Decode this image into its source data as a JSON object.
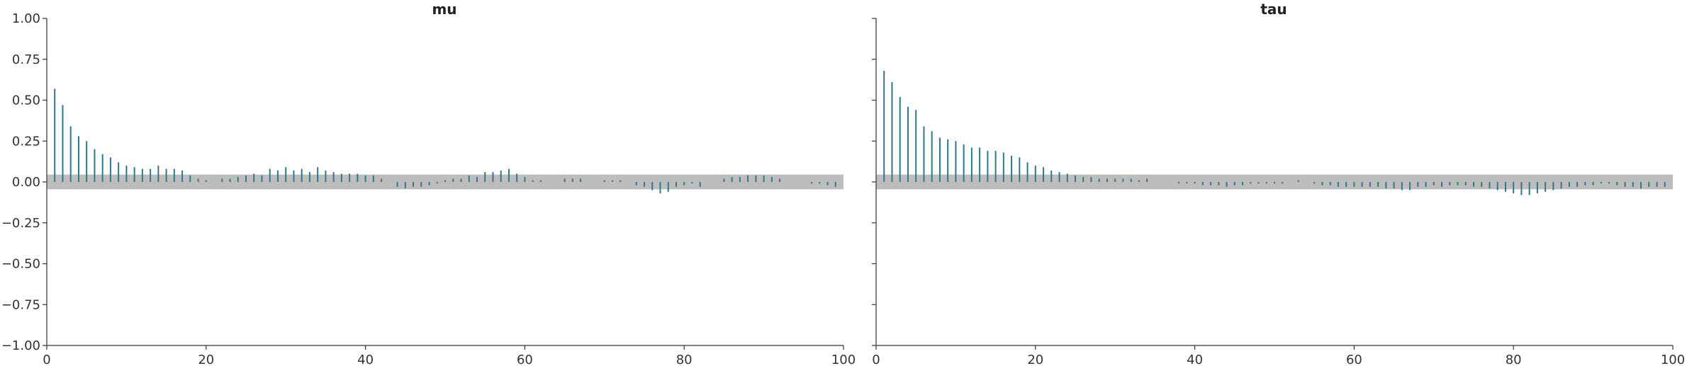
{
  "chart_data": [
    {
      "type": "bar",
      "title": "mu",
      "xlabel": "",
      "ylabel": "",
      "xlim": [
        0,
        100
      ],
      "ylim": [
        -1,
        1
      ],
      "x_ticks": [
        0,
        20,
        40,
        60,
        80,
        100
      ],
      "y_ticks": [
        "1.00",
        "0.75",
        "0.50",
        "0.25",
        "0.00",
        "−0.25",
        "−0.50",
        "−0.75",
        "−1.00"
      ],
      "confidence_band": [
        -0.045,
        0.045
      ],
      "grid": false,
      "colors": {
        "stem": "#2a7a8c",
        "band": "#bdbdbd",
        "axis": "#333333"
      },
      "lags": [
        1,
        2,
        3,
        4,
        5,
        6,
        7,
        8,
        9,
        10,
        11,
        12,
        13,
        14,
        15,
        16,
        17,
        18,
        19,
        20,
        21,
        22,
        23,
        24,
        25,
        26,
        27,
        28,
        29,
        30,
        31,
        32,
        33,
        34,
        35,
        36,
        37,
        38,
        39,
        40,
        41,
        42,
        43,
        44,
        45,
        46,
        47,
        48,
        49,
        50,
        51,
        52,
        53,
        54,
        55,
        56,
        57,
        58,
        59,
        60,
        61,
        62,
        63,
        64,
        65,
        66,
        67,
        68,
        69,
        70,
        71,
        72,
        73,
        74,
        75,
        76,
        77,
        78,
        79,
        80,
        81,
        82,
        83,
        84,
        85,
        86,
        87,
        88,
        89,
        90,
        91,
        92,
        93,
        94,
        95,
        96,
        97,
        98,
        99
      ],
      "values": [
        0.57,
        0.47,
        0.34,
        0.28,
        0.25,
        0.2,
        0.17,
        0.15,
        0.12,
        0.1,
        0.09,
        0.08,
        0.08,
        0.1,
        0.08,
        0.08,
        0.07,
        0.04,
        0.02,
        0.01,
        0.0,
        0.02,
        0.02,
        0.03,
        0.04,
        0.05,
        0.04,
        0.08,
        0.07,
        0.09,
        0.07,
        0.08,
        0.06,
        0.09,
        0.07,
        0.06,
        0.05,
        0.05,
        0.05,
        0.04,
        0.04,
        0.02,
        0.0,
        -0.03,
        -0.04,
        -0.03,
        -0.03,
        -0.02,
        -0.01,
        0.01,
        0.02,
        0.02,
        0.04,
        0.03,
        0.06,
        0.06,
        0.07,
        0.08,
        0.05,
        0.03,
        0.01,
        0.01,
        0.0,
        0.0,
        0.02,
        0.02,
        0.02,
        0.0,
        0.0,
        0.01,
        0.01,
        0.01,
        0.0,
        -0.02,
        -0.03,
        -0.05,
        -0.07,
        -0.06,
        -0.03,
        -0.02,
        -0.01,
        -0.03,
        0.0,
        0.0,
        0.02,
        0.03,
        0.03,
        0.04,
        0.04,
        0.04,
        0.03,
        0.02,
        0.0,
        0.0,
        0.0,
        -0.01,
        -0.01,
        -0.02,
        -0.03
      ]
    },
    {
      "type": "bar",
      "title": "tau",
      "xlabel": "",
      "ylabel": "",
      "xlim": [
        0,
        100
      ],
      "ylim": [
        -1,
        1
      ],
      "x_ticks": [
        0,
        20,
        40,
        60,
        80,
        100
      ],
      "y_ticks": [
        "",
        "",
        "",
        "",
        "",
        "",
        "",
        "",
        ""
      ],
      "confidence_band": [
        -0.045,
        0.045
      ],
      "grid": false,
      "colors": {
        "stem": "#2a7a8c",
        "band": "#bdbdbd",
        "axis": "#333333"
      },
      "lags": [
        1,
        2,
        3,
        4,
        5,
        6,
        7,
        8,
        9,
        10,
        11,
        12,
        13,
        14,
        15,
        16,
        17,
        18,
        19,
        20,
        21,
        22,
        23,
        24,
        25,
        26,
        27,
        28,
        29,
        30,
        31,
        32,
        33,
        34,
        35,
        36,
        37,
        38,
        39,
        40,
        41,
        42,
        43,
        44,
        45,
        46,
        47,
        48,
        49,
        50,
        51,
        52,
        53,
        54,
        55,
        56,
        57,
        58,
        59,
        60,
        61,
        62,
        63,
        64,
        65,
        66,
        67,
        68,
        69,
        70,
        71,
        72,
        73,
        74,
        75,
        76,
        77,
        78,
        79,
        80,
        81,
        82,
        83,
        84,
        85,
        86,
        87,
        88,
        89,
        90,
        91,
        92,
        93,
        94,
        95,
        96,
        97,
        98,
        99
      ],
      "values": [
        0.68,
        0.61,
        0.52,
        0.46,
        0.44,
        0.34,
        0.31,
        0.27,
        0.26,
        0.25,
        0.23,
        0.21,
        0.21,
        0.19,
        0.19,
        0.18,
        0.16,
        0.15,
        0.12,
        0.1,
        0.09,
        0.07,
        0.06,
        0.05,
        0.04,
        0.03,
        0.03,
        0.02,
        0.02,
        0.02,
        0.02,
        0.02,
        0.01,
        0.02,
        0.0,
        0.0,
        0.0,
        -0.01,
        -0.01,
        -0.01,
        -0.02,
        -0.02,
        -0.02,
        -0.03,
        -0.02,
        -0.02,
        -0.01,
        -0.01,
        -0.01,
        -0.01,
        -0.01,
        0.0,
        0.01,
        0.0,
        -0.01,
        -0.02,
        -0.02,
        -0.03,
        -0.03,
        -0.03,
        -0.03,
        -0.03,
        -0.03,
        -0.04,
        -0.04,
        -0.05,
        -0.05,
        -0.03,
        -0.03,
        -0.02,
        -0.03,
        -0.02,
        -0.02,
        -0.02,
        -0.03,
        -0.03,
        -0.04,
        -0.05,
        -0.06,
        -0.07,
        -0.08,
        -0.08,
        -0.07,
        -0.06,
        -0.05,
        -0.04,
        -0.03,
        -0.03,
        -0.02,
        -0.02,
        -0.01,
        -0.01,
        -0.02,
        -0.03,
        -0.03,
        -0.04,
        -0.03,
        -0.03,
        -0.03
      ]
    }
  ]
}
